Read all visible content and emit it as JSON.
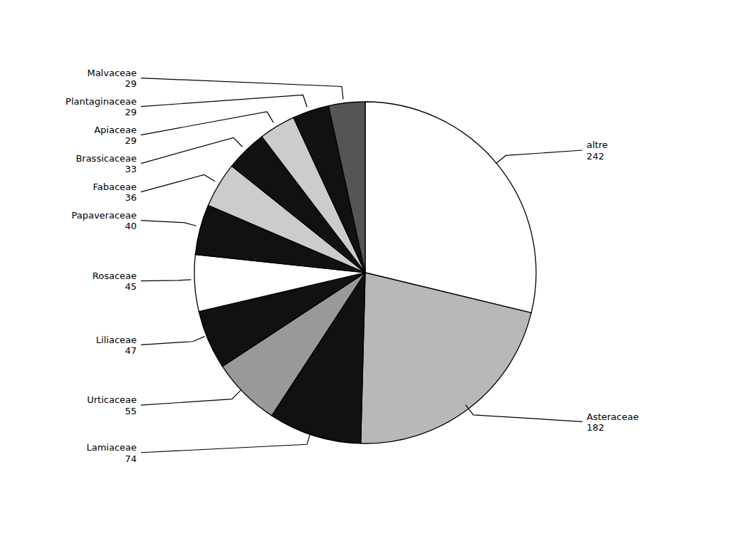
{
  "chart_data": {
    "type": "pie",
    "categories": [
      "altre",
      "Asteraceae",
      "Lamiaceae",
      "Urticaceae",
      "Liliaceae",
      "Rosaceae",
      "Papaveraceae",
      "Fabaceae",
      "Brassicaceae",
      "Apiaceae",
      "Plantaginaceae",
      "Malvaceae"
    ],
    "values": [
      242,
      182,
      74,
      55,
      47,
      45,
      40,
      36,
      33,
      29,
      29,
      29
    ],
    "colors": [
      "#ffffff",
      "#b8b8b8",
      "#111111",
      "#999999",
      "#111111",
      "#ffffff",
      "#111111",
      "#cccccc",
      "#111111",
      "#cccccc",
      "#111111",
      "#555555"
    ],
    "data_labels": true
  }
}
